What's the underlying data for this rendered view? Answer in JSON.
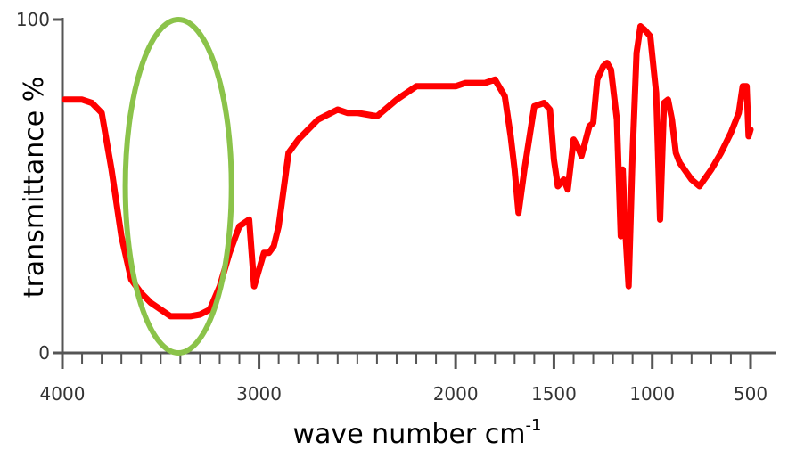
{
  "chart_data": {
    "type": "line",
    "xlabel": "wave number cm",
    "xlabel_superscript": "-1",
    "ylabel": "transmittance %",
    "xlim": [
      4000,
      500
    ],
    "ylim": [
      0,
      100
    ],
    "x_axis_reversed": true,
    "x_tick_labels": [
      "4000",
      "3000",
      "2000",
      "1500",
      "1000",
      "500"
    ],
    "y_tick_labels": [
      "0",
      "100"
    ],
    "grid": false,
    "legend": "none",
    "series": [
      {
        "color": "#ff0000",
        "x": [
          3990,
          3900,
          3850,
          3800,
          3750,
          3700,
          3650,
          3600,
          3550,
          3500,
          3450,
          3400,
          3350,
          3300,
          3250,
          3200,
          3150,
          3100,
          3050,
          3025,
          3000,
          2975,
          2950,
          2925,
          2900,
          2850,
          2800,
          2700,
          2600,
          2550,
          2500,
          2400,
          2300,
          2200,
          2100,
          2050,
          2000,
          1950,
          1900,
          1850,
          1800,
          1750,
          1720,
          1700,
          1680,
          1650,
          1600,
          1550,
          1520,
          1500,
          1480,
          1450,
          1430,
          1400,
          1380,
          1360,
          1320,
          1300,
          1280,
          1250,
          1230,
          1210,
          1180,
          1160,
          1150,
          1140,
          1120,
          1100,
          1080,
          1060,
          1040,
          1010,
          980,
          960,
          940,
          920,
          900,
          880,
          860,
          800,
          760,
          700,
          650,
          600,
          560,
          540,
          520,
          510,
          500
        ],
        "y": [
          76,
          76,
          75,
          72,
          55,
          35,
          22,
          18,
          15,
          13,
          11,
          11,
          11,
          11.5,
          13,
          20,
          30,
          38,
          40,
          20,
          25,
          30,
          30,
          32,
          38,
          60,
          64,
          70,
          73,
          72,
          72,
          71,
          76,
          80,
          80,
          80,
          80,
          81,
          81,
          81,
          82,
          77,
          65,
          55,
          42,
          55,
          74,
          75,
          73,
          58,
          50,
          52,
          49,
          64,
          62,
          59,
          68,
          69,
          82,
          86,
          87,
          85,
          70,
          35,
          55,
          40,
          20,
          60,
          90,
          98,
          97,
          95,
          78,
          40,
          75,
          76,
          70,
          60,
          57,
          52,
          50,
          55,
          60,
          66,
          72,
          80,
          80,
          65,
          67
        ]
      }
    ],
    "annotations": [
      {
        "type": "ellipse",
        "color": "#8bc34a",
        "x_center": 3410,
        "y_center": 50,
        "x_radius": 270,
        "y_radius": 50
      }
    ]
  }
}
